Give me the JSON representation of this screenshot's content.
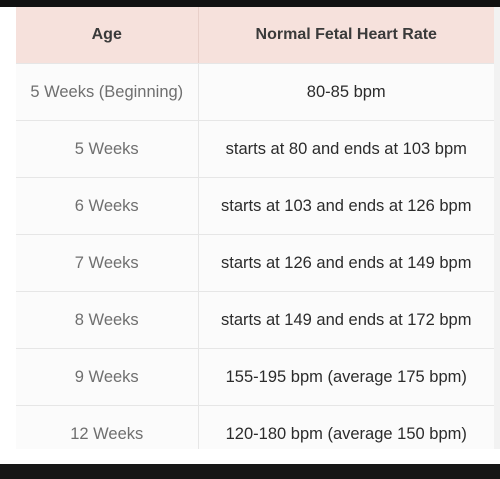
{
  "table": {
    "headers": [
      "Age",
      "Normal Fetal Heart Rate"
    ],
    "rows": [
      [
        "5 Weeks (Beginning)",
        "80-85 bpm"
      ],
      [
        "5 Weeks",
        "starts at 80 and ends at 103 bpm"
      ],
      [
        "6 Weeks",
        "starts at 103 and ends at 126 bpm"
      ],
      [
        "7 Weeks",
        "starts at 126 and ends at 149 bpm"
      ],
      [
        "8 Weeks",
        "starts at 149 and ends at 172 bpm"
      ],
      [
        "9 Weeks",
        "155-195 bpm (average 175 bpm)"
      ],
      [
        "12 Weeks",
        "120-180 bpm (average 150 bpm)"
      ]
    ]
  },
  "colors": {
    "header_bg": "#f6e1dc",
    "age_text": "#6f6f6f",
    "rate_text": "#2b2b2b"
  }
}
